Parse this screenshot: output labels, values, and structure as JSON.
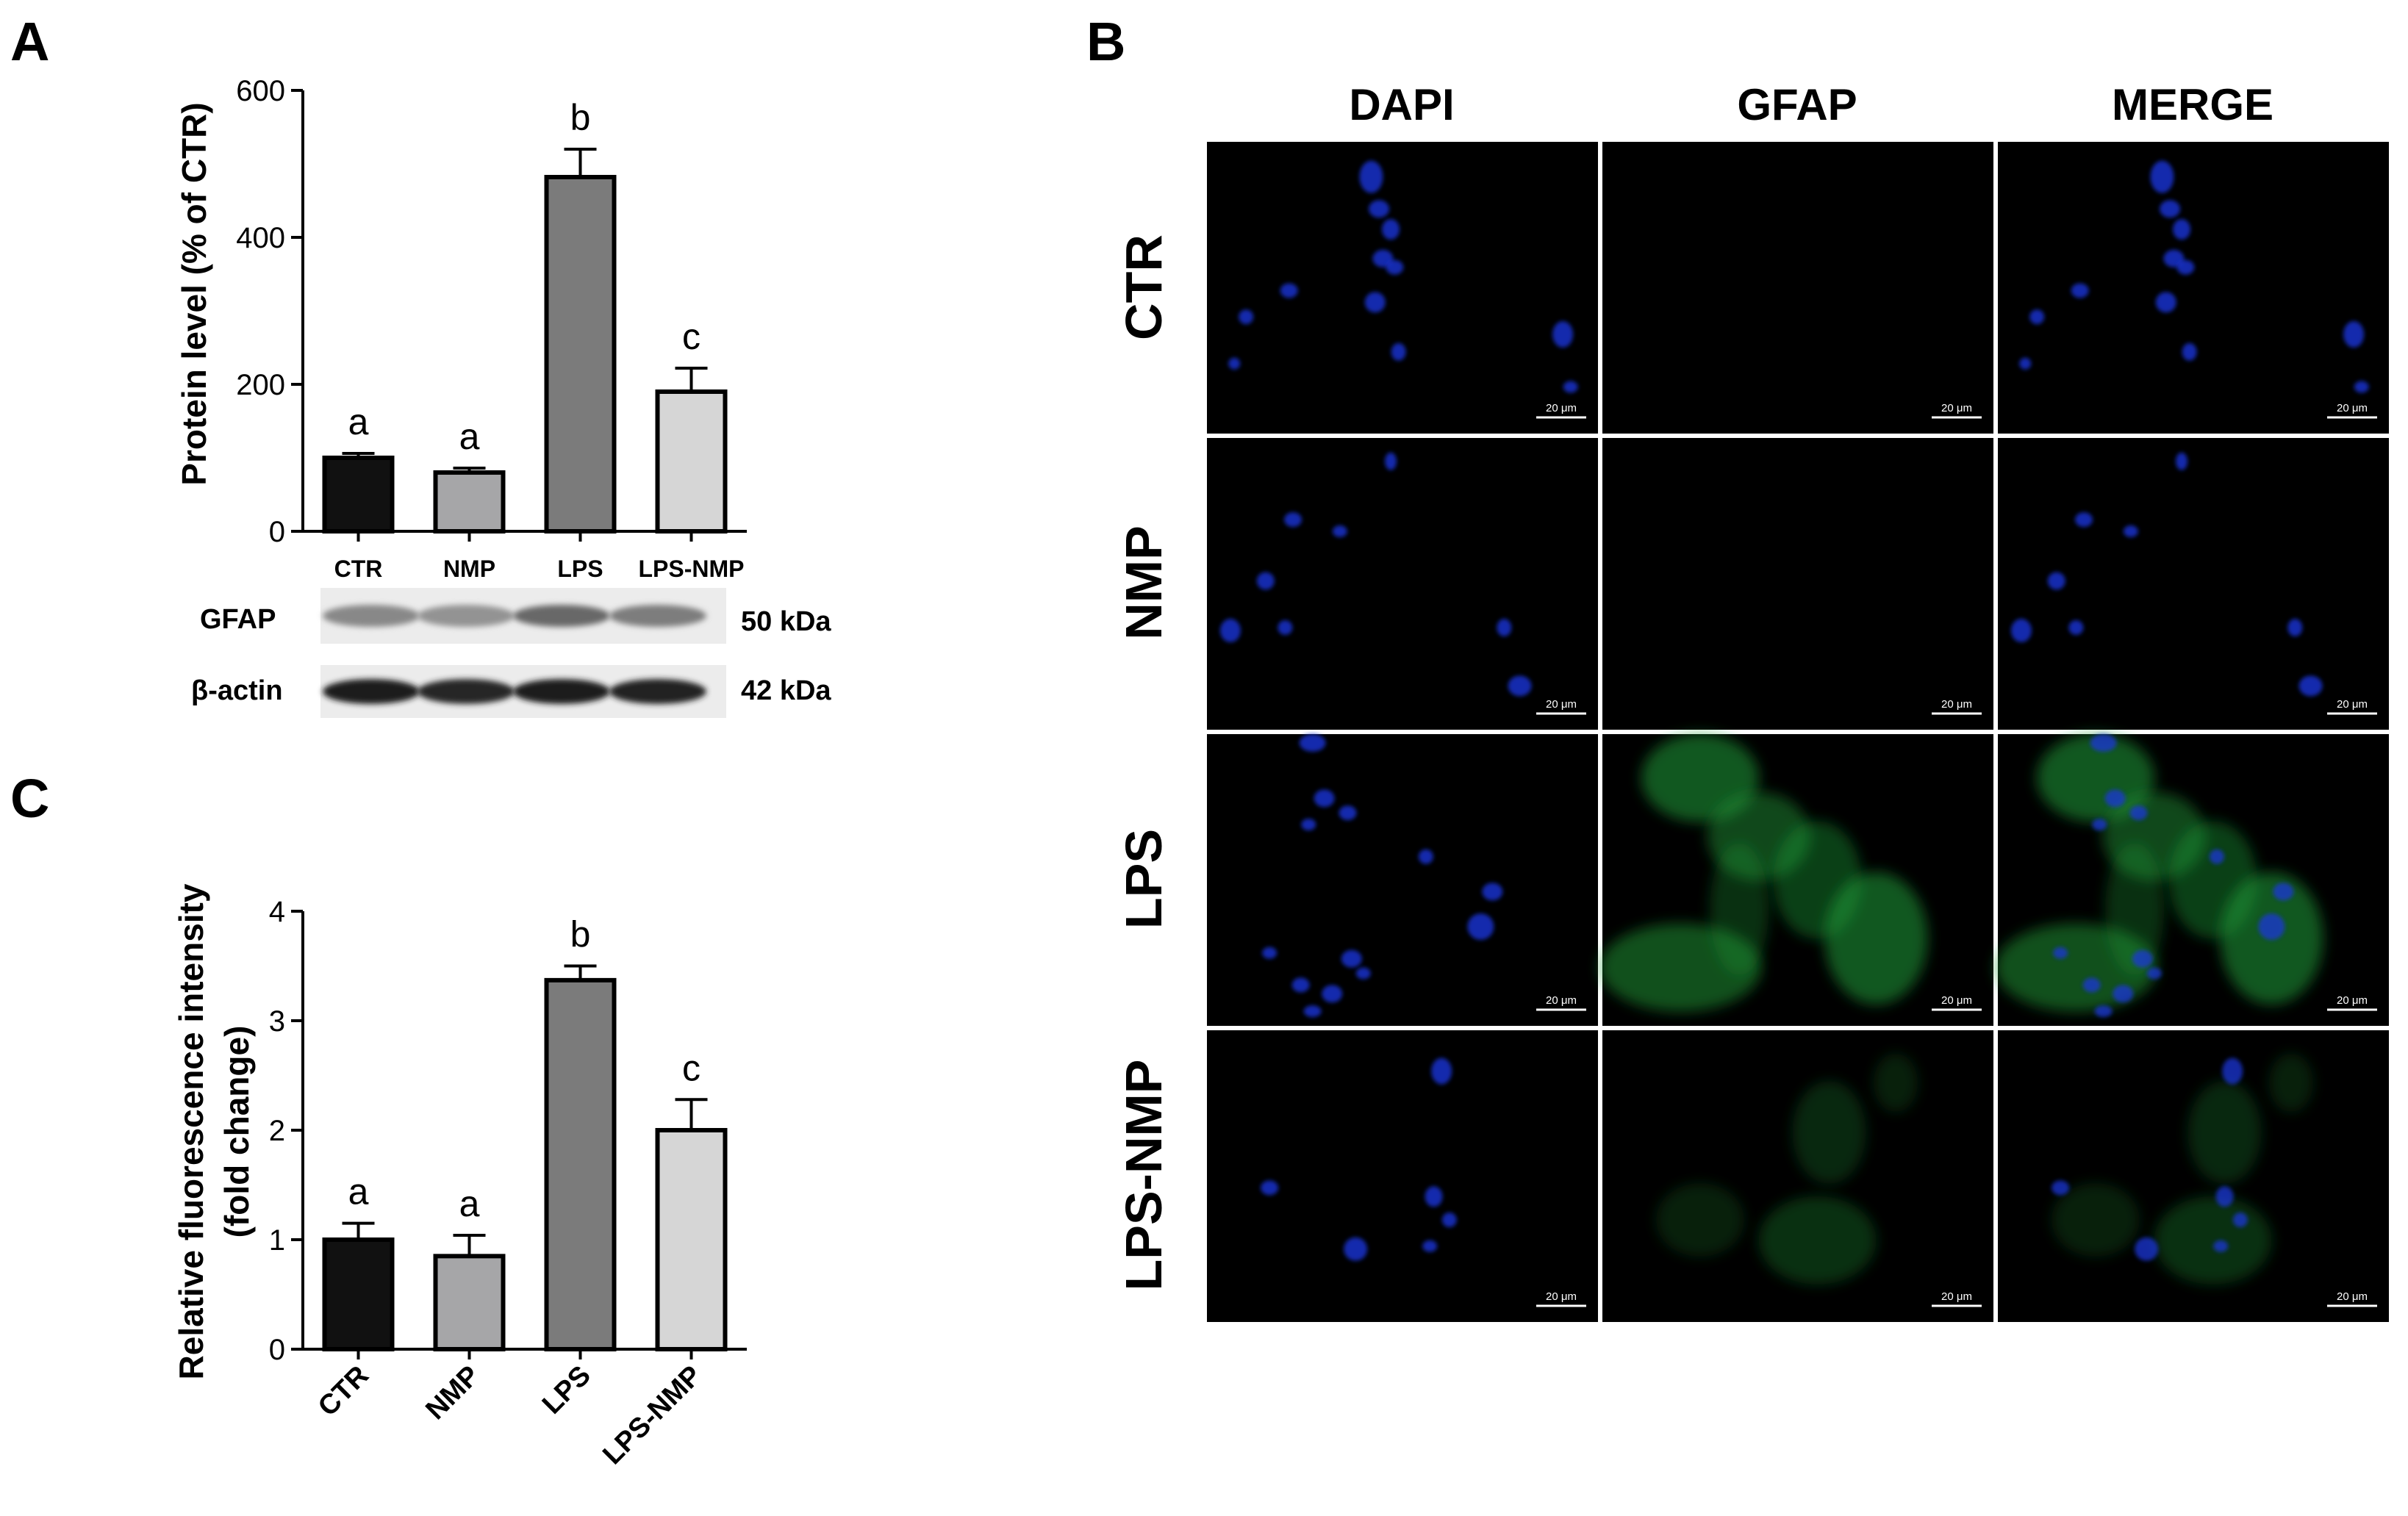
{
  "panels": {
    "a_letter": "A",
    "b_letter": "B",
    "c_letter": "C"
  },
  "colors": {
    "CTR": "#111111",
    "NMP": "#a6a6a8",
    "LPS": "#7b7b7b",
    "LPS-NMP": "#d6d6d6",
    "nucleus_blue": "#1a35d8",
    "gfap_green": "#1fa03a"
  },
  "chart_data": [
    {
      "id": "A",
      "type": "bar",
      "categories": [
        "CTR",
        "NMP",
        "LPS",
        "LPS-NMP"
      ],
      "values": [
        100,
        80,
        482,
        190
      ],
      "errors": [
        6,
        6,
        38,
        32
      ],
      "significance": [
        "a",
        "a",
        "b",
        "c"
      ],
      "ylabel": "Protein level (% of CTR)",
      "xlabel": "",
      "ylim": [
        0,
        600
      ],
      "yticks": [
        0,
        200,
        400,
        600
      ],
      "grid": false,
      "legend": "none"
    },
    {
      "id": "C",
      "type": "bar",
      "categories": [
        "CTR",
        "NMP",
        "LPS",
        "LPS-NMP"
      ],
      "values": [
        1.0,
        0.85,
        3.37,
        2.0
      ],
      "errors": [
        0.15,
        0.19,
        0.13,
        0.28
      ],
      "significance": [
        "a",
        "a",
        "b",
        "c"
      ],
      "ylabel": "Relative fluorescence intensity (fold change)",
      "ylabel_lines": [
        "Relative fluorescence intensity",
        "(fold change)"
      ],
      "xlabel": "",
      "ylim": [
        0,
        4
      ],
      "yticks": [
        0,
        1,
        2,
        3,
        4
      ],
      "grid": false,
      "legend": "none"
    }
  ],
  "blot": {
    "rows": [
      {
        "label": "GFAP",
        "size": "50 kDa",
        "band_intensity": [
          0.45,
          0.4,
          0.6,
          0.5
        ]
      },
      {
        "label": "β-actin",
        "size": "42 kDa",
        "band_intensity": [
          0.95,
          0.9,
          0.95,
          0.92
        ]
      }
    ]
  },
  "microscopy": {
    "columns": [
      "DAPI",
      "GFAP",
      "MERGE"
    ],
    "rows": [
      "CTR",
      "NMP",
      "LPS",
      "LPS-NMP"
    ],
    "scale_bar": "20 μm"
  }
}
